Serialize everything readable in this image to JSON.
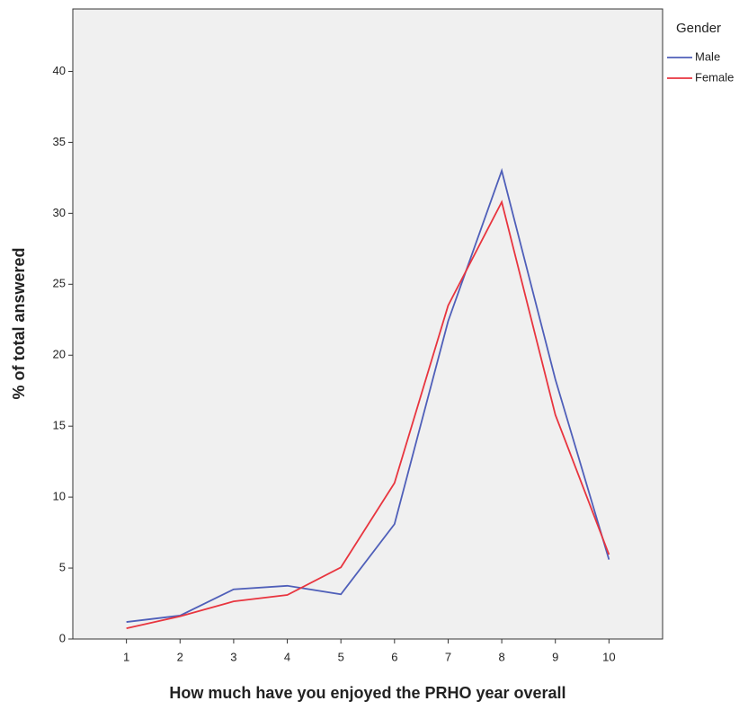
{
  "chart_data": {
    "type": "line",
    "x_label": "How much have you enjoyed the PRHO year overall",
    "y_label": "% of total answered",
    "legend_title": "Gender",
    "legend_position": "right",
    "x": [
      1,
      2,
      3,
      4,
      5,
      6,
      7,
      8,
      9,
      10
    ],
    "series": [
      {
        "name": "Male",
        "color": "#4f5fb9",
        "values": [
          1.2,
          1.65,
          3.5,
          3.75,
          3.15,
          8.1,
          22.4,
          33.0,
          18.3,
          5.6
        ]
      },
      {
        "name": "Female",
        "color": "#e8353f",
        "values": [
          0.75,
          1.6,
          2.65,
          3.1,
          5.05,
          11.0,
          23.5,
          30.8,
          15.8,
          5.95
        ]
      }
    ],
    "xlim": [
      0,
      11
    ],
    "xticks": [
      1,
      2,
      3,
      4,
      5,
      6,
      7,
      8,
      9,
      10
    ],
    "ylim": [
      0,
      44.4
    ],
    "yticks": [
      0,
      5,
      10,
      15,
      20,
      25,
      30,
      35,
      40
    ],
    "grid": false
  }
}
